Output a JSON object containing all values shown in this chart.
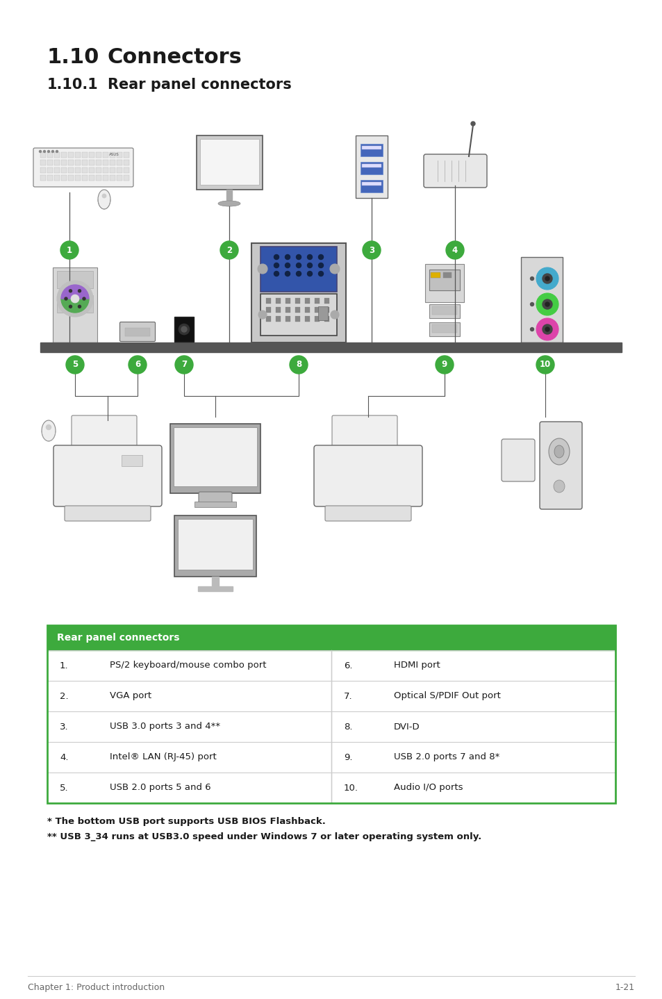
{
  "title_section": "1.10",
  "title_text": "Connectors",
  "subtitle_section": "1.10.1",
  "subtitle_text": "Rear panel connectors",
  "table_header": "Rear panel connectors",
  "table_header_bg": "#3daa3d",
  "table_header_color": "#ffffff",
  "table_rows": [
    [
      "1.",
      "PS/2 keyboard/mouse combo port",
      "6.",
      "HDMI port"
    ],
    [
      "2.",
      "VGA port",
      "7.",
      "Optical S/PDIF Out port"
    ],
    [
      "3.",
      "USB 3.0 ports 3 and 4**",
      "8.",
      "DVI-D"
    ],
    [
      "4.",
      "Intel® LAN (RJ-45) port",
      "9.",
      "USB 2.0 ports 7 and 8*"
    ],
    [
      "5.",
      "USB 2.0 ports 5 and 6",
      "10.",
      "Audio I/O ports"
    ]
  ],
  "footnote1": "* The bottom USB port supports USB BIOS Flashback.",
  "footnote2": "** USB 3_34 runs at USB3.0 speed under Windows 7 or later operating system only.",
  "footer_left": "Chapter 1: Product introduction",
  "footer_right": "1-21",
  "bg_color": "#ffffff",
  "table_border_color": "#3daa3d",
  "table_line_color": "#cccccc",
  "text_color": "#1a1a1a",
  "title_fontsize": 22,
  "subtitle_fontsize": 15,
  "body_fontsize": 9.5,
  "footer_fontsize": 9,
  "green_circle_color": "#3daa3d",
  "shelf_color": "#555555",
  "line_color": "#555555"
}
